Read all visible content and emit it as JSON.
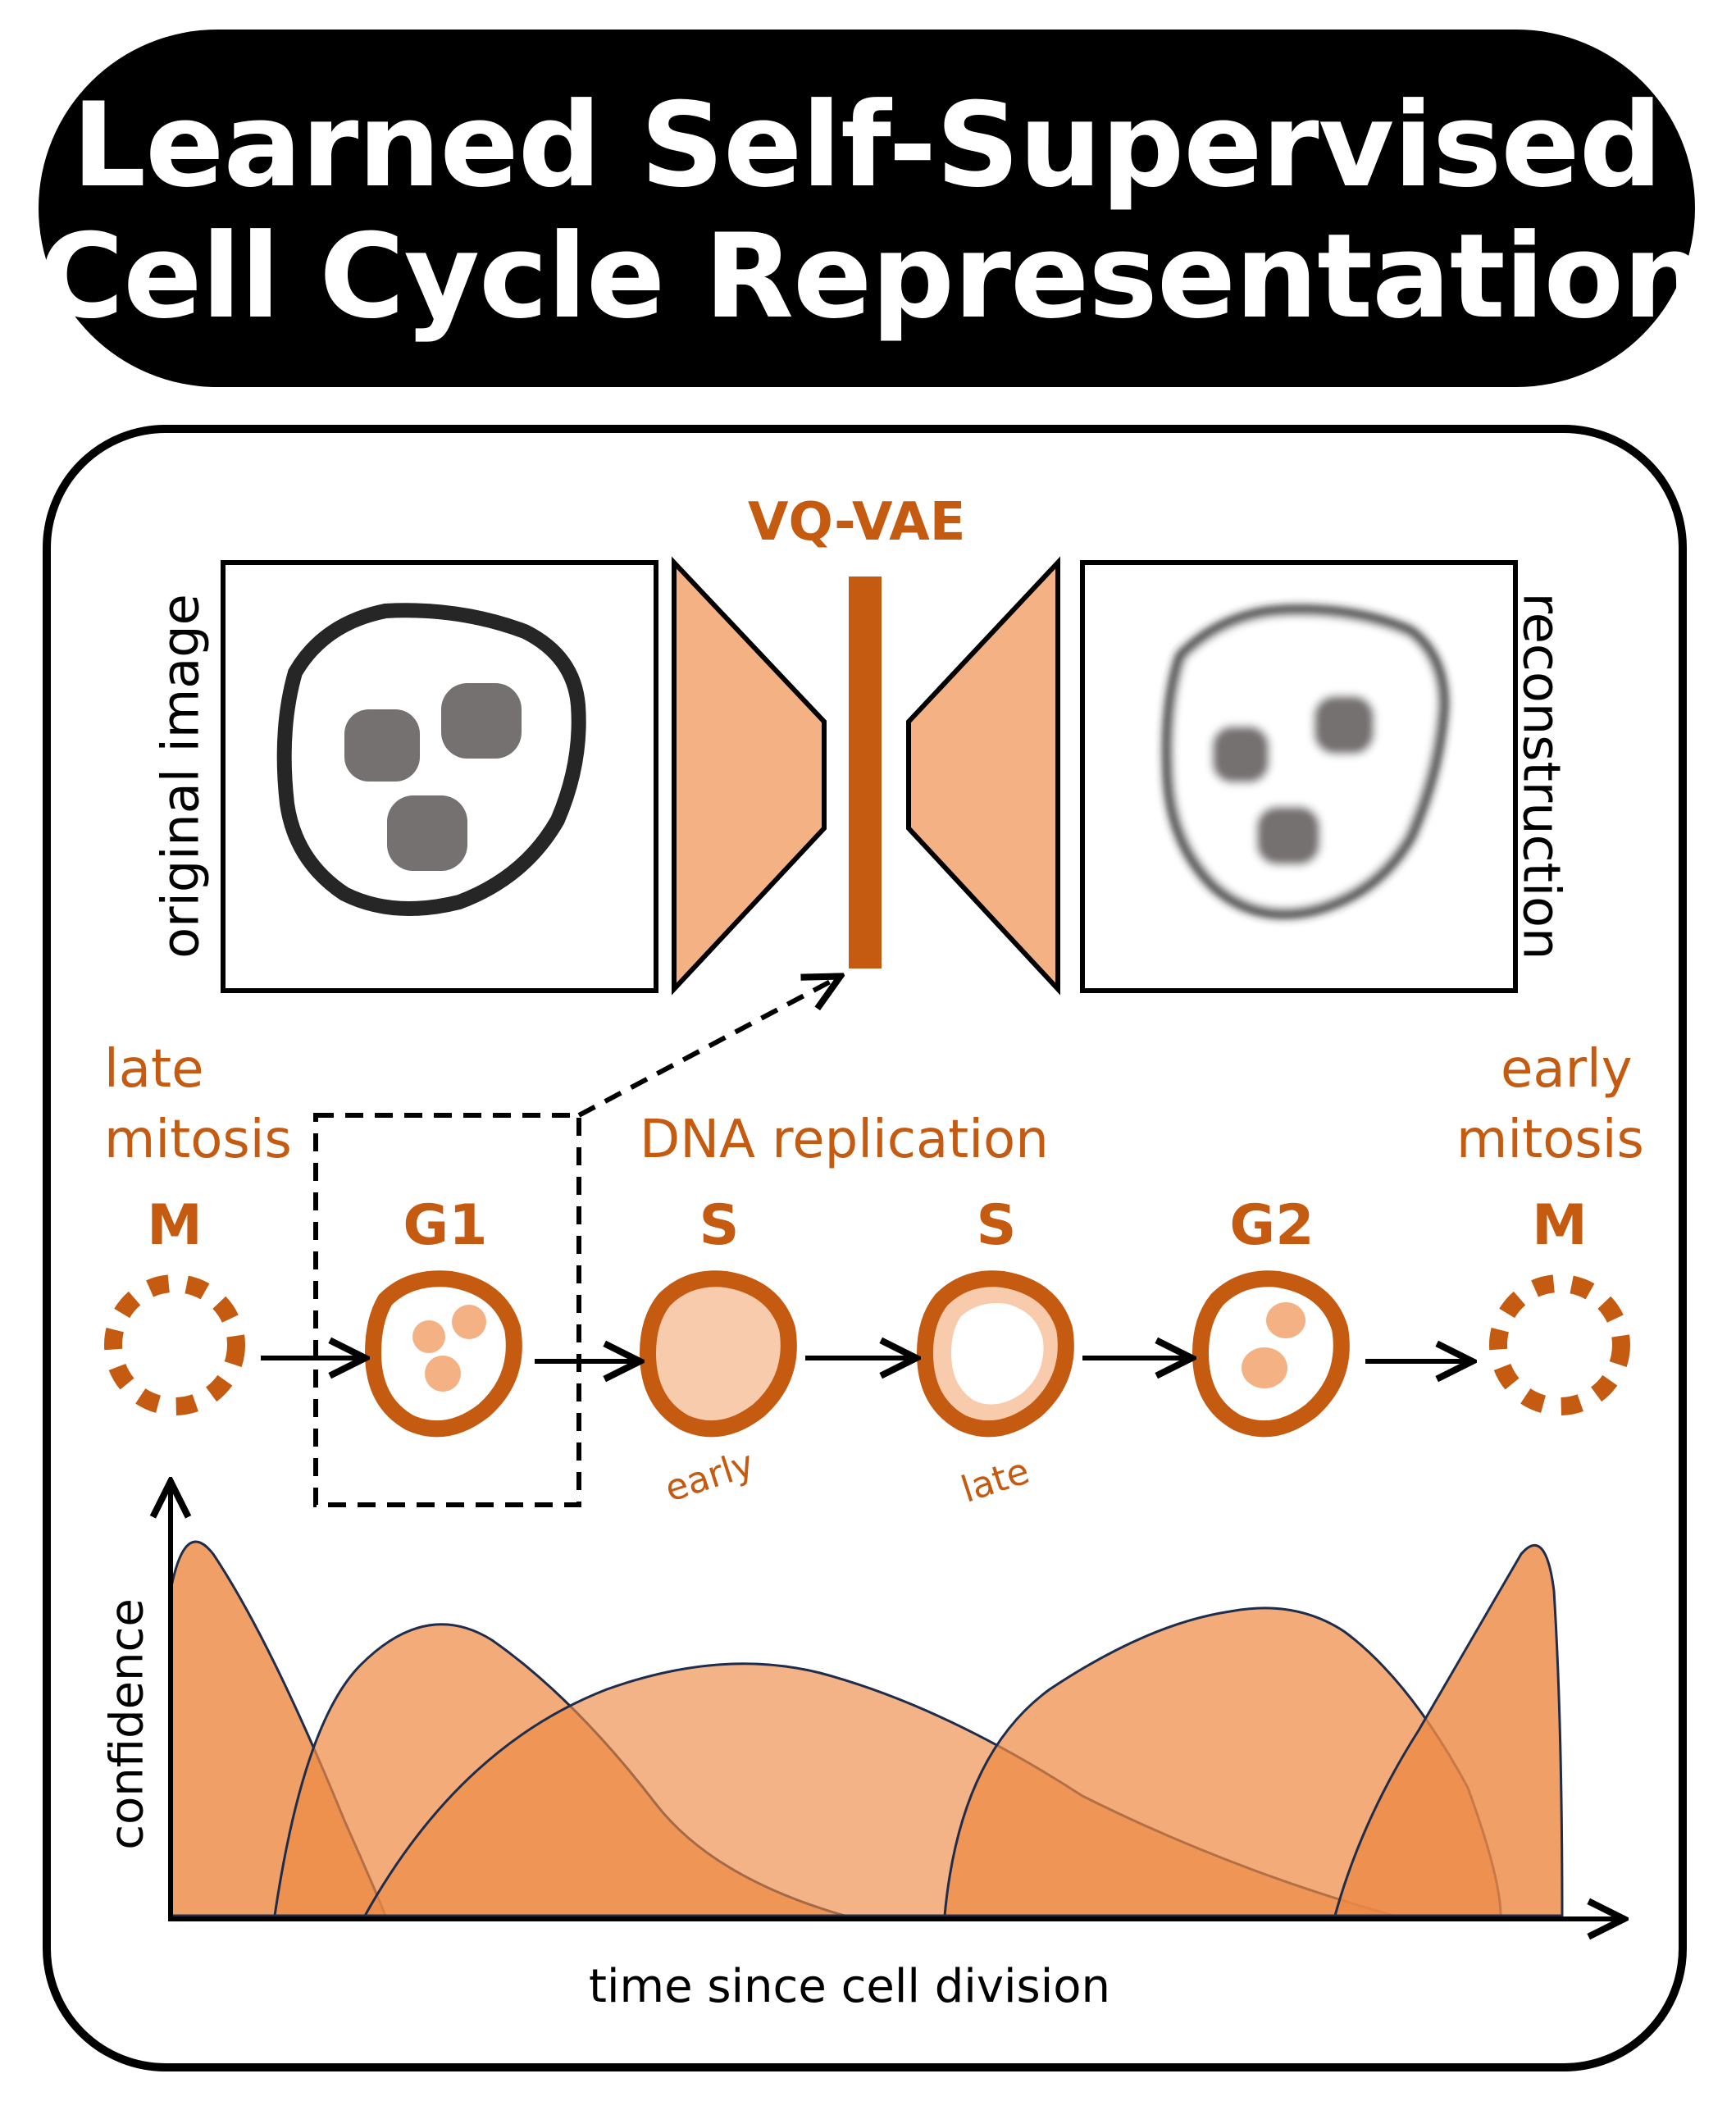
{
  "title": {
    "line1": "Learned Self-Supervised",
    "line2": "Cell Cycle Representation"
  },
  "model": {
    "name": "VQ-VAE",
    "input_label": "original image",
    "output_label": "reconstruction"
  },
  "stages": {
    "late_mitosis": [
      "late",
      "mitosis"
    ],
    "dna_replication": "DNA replication",
    "early_mitosis": [
      "early",
      "mitosis"
    ]
  },
  "phases": [
    {
      "label": "M",
      "sublabel": ""
    },
    {
      "label": "G1",
      "sublabel": ""
    },
    {
      "label": "S",
      "sublabel": "early"
    },
    {
      "label": "S",
      "sublabel": "late"
    },
    {
      "label": "G2",
      "sublabel": ""
    },
    {
      "label": "M",
      "sublabel": ""
    }
  ],
  "axes": {
    "ylabel": "confidence",
    "xlabel": "time since cell division"
  },
  "colors": {
    "accent": "#c55a11",
    "fill_light": "#f4b183",
    "fill_mid": "#ed8a45",
    "nucleus_gray": "#767171"
  }
}
